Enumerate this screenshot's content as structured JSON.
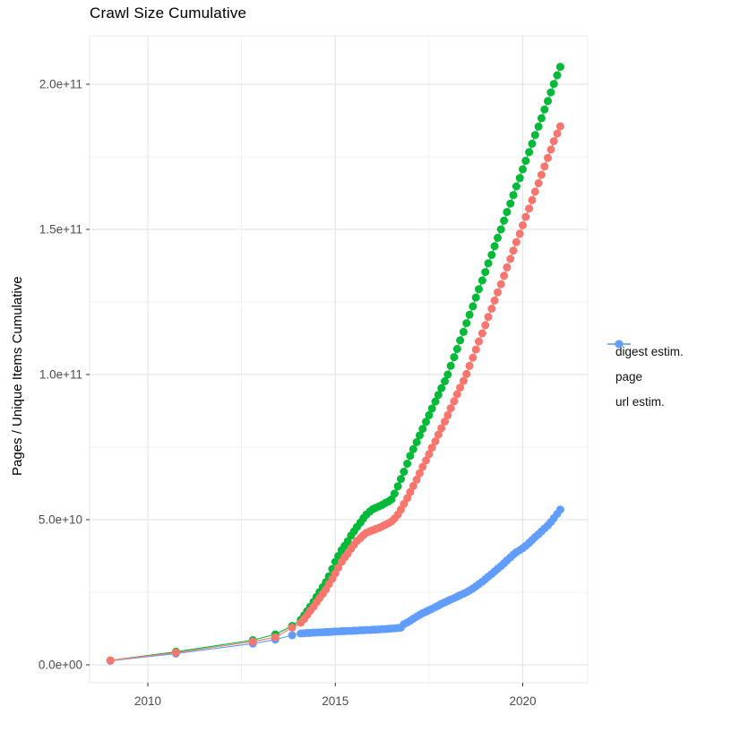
{
  "title": "Crawl Size Cumulative",
  "axes": {
    "y_title": "Pages / Unique Items Cumulative",
    "y_tick_labels": [
      "0.0e+00",
      "5.0e+10",
      "1.0e+11",
      "1.5e+11",
      "2.0e+11"
    ],
    "y_tick_values_billions": [
      0,
      50,
      100,
      150,
      200
    ],
    "y_minor_values_billions": [
      25,
      75,
      125,
      175
    ],
    "x_tick_labels": [
      "2010",
      "2015",
      "2020"
    ],
    "x_tick_values": [
      2010,
      2015,
      2020
    ],
    "x_minor_values": [
      2012.5,
      2017.5
    ]
  },
  "legend": [
    {
      "label": "digest estim.",
      "color": "#F8766D"
    },
    {
      "label": "page",
      "color": "#00BA38"
    },
    {
      "label": "url estim.",
      "color": "#619CFF"
    }
  ],
  "colors": {
    "grid_major": "#e5e5e5",
    "grid_minor": "#f0f0f0",
    "panel_border": "#e9e9e9",
    "tick_mark": "#333333",
    "tick_label": "#4d4d4d"
  },
  "chart_data": {
    "type": "line",
    "title": "Crawl Size Cumulative",
    "xlabel": "",
    "ylabel": "Pages / Unique Items Cumulative",
    "x_unit": "decimal year",
    "y_unit": "items, billions (1e9)",
    "xlim": [
      2008.4,
      2021.8
    ],
    "ylim_billions": [
      0,
      215
    ],
    "grid": true,
    "legend_position": "right",
    "marker": "point-with-line",
    "series": [
      {
        "name": "url estim.",
        "color": "#619CFF",
        "points": [
          [
            2009.0,
            1.4
          ],
          [
            2010.75,
            3.9
          ],
          [
            2012.8,
            7.3
          ],
          [
            2013.4,
            8.7
          ],
          [
            2013.85,
            10.2
          ],
          [
            2014.08,
            10.8
          ],
          [
            2014.17,
            10.9
          ],
          [
            2014.25,
            11.0
          ],
          [
            2014.33,
            11.0
          ],
          [
            2014.42,
            11.1
          ],
          [
            2014.5,
            11.1
          ],
          [
            2014.58,
            11.2
          ],
          [
            2014.67,
            11.2
          ],
          [
            2014.75,
            11.3
          ],
          [
            2014.83,
            11.3
          ],
          [
            2014.92,
            11.4
          ],
          [
            2015.0,
            11.5
          ],
          [
            2015.08,
            11.5
          ],
          [
            2015.17,
            11.6
          ],
          [
            2015.25,
            11.6
          ],
          [
            2015.33,
            11.7
          ],
          [
            2015.42,
            11.7
          ],
          [
            2015.5,
            11.8
          ],
          [
            2015.58,
            11.8
          ],
          [
            2015.67,
            11.9
          ],
          [
            2015.75,
            11.9
          ],
          [
            2015.83,
            12.0
          ],
          [
            2015.92,
            12.0
          ],
          [
            2016.0,
            12.1
          ],
          [
            2016.08,
            12.1
          ],
          [
            2016.17,
            12.2
          ],
          [
            2016.25,
            12.3
          ],
          [
            2016.33,
            12.3
          ],
          [
            2016.42,
            12.4
          ],
          [
            2016.5,
            12.5
          ],
          [
            2016.58,
            12.6
          ],
          [
            2016.67,
            12.7
          ],
          [
            2016.75,
            12.8
          ],
          [
            2016.83,
            14.0
          ],
          [
            2016.92,
            14.6
          ],
          [
            2017.0,
            15.2
          ],
          [
            2017.08,
            15.9
          ],
          [
            2017.17,
            16.6
          ],
          [
            2017.25,
            17.2
          ],
          [
            2017.33,
            17.8
          ],
          [
            2017.42,
            18.3
          ],
          [
            2017.5,
            18.8
          ],
          [
            2017.58,
            19.3
          ],
          [
            2017.67,
            19.9
          ],
          [
            2017.75,
            20.4
          ],
          [
            2017.83,
            21.0
          ],
          [
            2017.92,
            21.5
          ],
          [
            2018.0,
            22.0
          ],
          [
            2018.08,
            22.5
          ],
          [
            2018.17,
            23.0
          ],
          [
            2018.25,
            23.5
          ],
          [
            2018.33,
            24.0
          ],
          [
            2018.42,
            24.5
          ],
          [
            2018.5,
            25.0
          ],
          [
            2018.58,
            25.6
          ],
          [
            2018.67,
            26.3
          ],
          [
            2018.75,
            27.0
          ],
          [
            2018.83,
            27.8
          ],
          [
            2018.92,
            28.6
          ],
          [
            2019.0,
            29.5
          ],
          [
            2019.08,
            30.4
          ],
          [
            2019.17,
            31.3
          ],
          [
            2019.25,
            32.2
          ],
          [
            2019.33,
            33.1
          ],
          [
            2019.42,
            34.0
          ],
          [
            2019.5,
            35.0
          ],
          [
            2019.58,
            36.0
          ],
          [
            2019.67,
            37.0
          ],
          [
            2019.75,
            38.0
          ],
          [
            2019.83,
            38.8
          ],
          [
            2019.92,
            39.5
          ],
          [
            2020.0,
            40.2
          ],
          [
            2020.08,
            41.0
          ],
          [
            2020.17,
            42.0
          ],
          [
            2020.25,
            43.0
          ],
          [
            2020.33,
            44.0
          ],
          [
            2020.42,
            45.0
          ],
          [
            2020.5,
            46.0
          ],
          [
            2020.58,
            47.0
          ],
          [
            2020.67,
            48.0
          ],
          [
            2020.75,
            49.2
          ],
          [
            2020.83,
            50.5
          ],
          [
            2020.92,
            52.0
          ],
          [
            2021.0,
            53.5
          ]
        ]
      },
      {
        "name": "page",
        "color": "#00BA38",
        "points": [
          [
            2009.0,
            1.5
          ],
          [
            2010.75,
            4.5
          ],
          [
            2012.8,
            8.5
          ],
          [
            2013.4,
            10.5
          ],
          [
            2013.85,
            13.4
          ],
          [
            2014.08,
            15.5
          ],
          [
            2014.17,
            17.0
          ],
          [
            2014.25,
            18.5
          ],
          [
            2014.33,
            20.0
          ],
          [
            2014.42,
            21.7
          ],
          [
            2014.5,
            23.4
          ],
          [
            2014.58,
            25.1
          ],
          [
            2014.67,
            26.8
          ],
          [
            2014.75,
            28.5
          ],
          [
            2014.83,
            30.5
          ],
          [
            2014.92,
            33.0
          ],
          [
            2015.0,
            35.5
          ],
          [
            2015.08,
            37.5
          ],
          [
            2015.17,
            39.5
          ],
          [
            2015.25,
            41.0
          ],
          [
            2015.33,
            42.5
          ],
          [
            2015.42,
            44.5
          ],
          [
            2015.5,
            46.0
          ],
          [
            2015.58,
            47.5
          ],
          [
            2015.67,
            49.0
          ],
          [
            2015.75,
            50.5
          ],
          [
            2015.83,
            51.8
          ],
          [
            2015.92,
            52.8
          ],
          [
            2016.0,
            53.6
          ],
          [
            2016.08,
            54.1
          ],
          [
            2016.17,
            54.6
          ],
          [
            2016.25,
            55.1
          ],
          [
            2016.33,
            55.7
          ],
          [
            2016.42,
            56.3
          ],
          [
            2016.5,
            57.0
          ],
          [
            2016.58,
            59.0
          ],
          [
            2016.67,
            61.5
          ],
          [
            2016.75,
            64.0
          ],
          [
            2016.83,
            66.5
          ],
          [
            2016.92,
            69.3
          ],
          [
            2017.0,
            72.0
          ],
          [
            2017.08,
            74.3
          ],
          [
            2017.17,
            76.7
          ],
          [
            2017.25,
            79.0
          ],
          [
            2017.33,
            81.3
          ],
          [
            2017.42,
            83.7
          ],
          [
            2017.5,
            86.0
          ],
          [
            2017.58,
            88.3
          ],
          [
            2017.67,
            90.7
          ],
          [
            2017.75,
            93.0
          ],
          [
            2017.83,
            95.3
          ],
          [
            2017.92,
            97.7
          ],
          [
            2018.0,
            100.0
          ],
          [
            2018.08,
            103.0
          ],
          [
            2018.17,
            106.0
          ],
          [
            2018.25,
            108.8
          ],
          [
            2018.33,
            111.8
          ],
          [
            2018.42,
            114.7
          ],
          [
            2018.5,
            117.7
          ],
          [
            2018.58,
            120.6
          ],
          [
            2018.67,
            123.5
          ],
          [
            2018.75,
            126.5
          ],
          [
            2018.83,
            129.4
          ],
          [
            2018.92,
            132.4
          ],
          [
            2019.0,
            135.3
          ],
          [
            2019.08,
            138.3
          ],
          [
            2019.17,
            141.2
          ],
          [
            2019.25,
            144.2
          ],
          [
            2019.33,
            147.1
          ],
          [
            2019.42,
            150.0
          ],
          [
            2019.5,
            153.0
          ],
          [
            2019.58,
            156.0
          ],
          [
            2019.67,
            158.9
          ],
          [
            2019.75,
            161.8
          ],
          [
            2019.83,
            164.8
          ],
          [
            2019.92,
            167.7
          ],
          [
            2020.0,
            170.7
          ],
          [
            2020.08,
            173.6
          ],
          [
            2020.17,
            176.6
          ],
          [
            2020.25,
            179.5
          ],
          [
            2020.33,
            182.5
          ],
          [
            2020.42,
            185.4
          ],
          [
            2020.5,
            188.3
          ],
          [
            2020.58,
            191.3
          ],
          [
            2020.67,
            194.2
          ],
          [
            2020.75,
            197.2
          ],
          [
            2020.83,
            200.1
          ],
          [
            2020.92,
            203.1
          ],
          [
            2021.0,
            206.0
          ]
        ]
      },
      {
        "name": "digest estim.",
        "color": "#F8766D",
        "points": [
          [
            2009.0,
            1.5
          ],
          [
            2010.75,
            4.2
          ],
          [
            2012.8,
            8.0
          ],
          [
            2013.4,
            9.5
          ],
          [
            2013.85,
            12.8
          ],
          [
            2014.08,
            14.5
          ],
          [
            2014.17,
            15.8
          ],
          [
            2014.25,
            17.2
          ],
          [
            2014.33,
            18.6
          ],
          [
            2014.42,
            20.0
          ],
          [
            2014.5,
            21.5
          ],
          [
            2014.58,
            23.0
          ],
          [
            2014.67,
            24.5
          ],
          [
            2014.75,
            26.0
          ],
          [
            2014.83,
            27.8
          ],
          [
            2014.92,
            29.6
          ],
          [
            2015.0,
            31.5
          ],
          [
            2015.08,
            33.5
          ],
          [
            2015.17,
            35.5
          ],
          [
            2015.25,
            37.0
          ],
          [
            2015.33,
            38.3
          ],
          [
            2015.42,
            40.0
          ],
          [
            2015.5,
            41.4
          ],
          [
            2015.58,
            42.7
          ],
          [
            2015.67,
            43.7
          ],
          [
            2015.75,
            44.7
          ],
          [
            2015.83,
            45.5
          ],
          [
            2015.92,
            46.0
          ],
          [
            2016.0,
            46.4
          ],
          [
            2016.08,
            46.8
          ],
          [
            2016.17,
            47.2
          ],
          [
            2016.25,
            47.7
          ],
          [
            2016.33,
            48.2
          ],
          [
            2016.42,
            48.8
          ],
          [
            2016.5,
            49.4
          ],
          [
            2016.58,
            50.4
          ],
          [
            2016.67,
            51.8
          ],
          [
            2016.75,
            53.5
          ],
          [
            2016.83,
            55.4
          ],
          [
            2016.92,
            57.4
          ],
          [
            2017.0,
            59.5
          ],
          [
            2017.08,
            61.6
          ],
          [
            2017.17,
            63.8
          ],
          [
            2017.25,
            66.0
          ],
          [
            2017.33,
            68.2
          ],
          [
            2017.42,
            70.4
          ],
          [
            2017.5,
            72.6
          ],
          [
            2017.58,
            74.8
          ],
          [
            2017.67,
            77.0
          ],
          [
            2017.75,
            79.3
          ],
          [
            2017.83,
            81.5
          ],
          [
            2017.92,
            83.8
          ],
          [
            2018.0,
            86.0
          ],
          [
            2018.08,
            88.4
          ],
          [
            2018.17,
            90.8
          ],
          [
            2018.25,
            93.2
          ],
          [
            2018.33,
            95.5
          ],
          [
            2018.42,
            97.8
          ],
          [
            2018.5,
            100.2
          ],
          [
            2018.58,
            103.0
          ],
          [
            2018.67,
            105.8
          ],
          [
            2018.75,
            108.6
          ],
          [
            2018.83,
            111.4
          ],
          [
            2018.92,
            114.2
          ],
          [
            2019.0,
            117.0
          ],
          [
            2019.08,
            119.8
          ],
          [
            2019.17,
            122.7
          ],
          [
            2019.25,
            125.5
          ],
          [
            2019.33,
            128.3
          ],
          [
            2019.42,
            131.1
          ],
          [
            2019.5,
            134.0
          ],
          [
            2019.58,
            136.9
          ],
          [
            2019.67,
            139.8
          ],
          [
            2019.75,
            142.7
          ],
          [
            2019.83,
            145.6
          ],
          [
            2019.92,
            148.5
          ],
          [
            2020.0,
            151.4
          ],
          [
            2020.08,
            154.3
          ],
          [
            2020.17,
            157.2
          ],
          [
            2020.25,
            160.1
          ],
          [
            2020.33,
            163.0
          ],
          [
            2020.42,
            165.9
          ],
          [
            2020.5,
            168.8
          ],
          [
            2020.58,
            171.7
          ],
          [
            2020.67,
            174.6
          ],
          [
            2020.75,
            177.5
          ],
          [
            2020.83,
            180.4
          ],
          [
            2020.92,
            183.0
          ],
          [
            2021.0,
            185.5
          ]
        ]
      }
    ]
  }
}
